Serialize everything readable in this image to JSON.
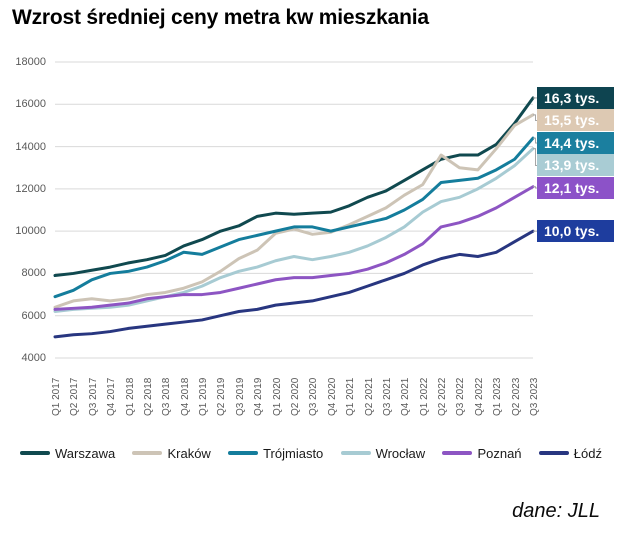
{
  "header": {
    "title": "Wzrost średniej ceny metra kw mieszkania"
  },
  "source": {
    "label": "dane: JLL"
  },
  "colors": {
    "background": "#ffffff",
    "gridline": "#d9d9d9",
    "axis_text": "#595959",
    "connector": "#a6a6a6",
    "title_text": "#000000"
  },
  "chart_data": {
    "type": "line",
    "title": "Wzrost średniej ceny metra kw mieszkania",
    "xlabel": "",
    "ylabel": "",
    "ylim": [
      4000,
      18000
    ],
    "y_ticks": [
      4000,
      6000,
      8000,
      10000,
      12000,
      14000,
      16000,
      18000
    ],
    "grid": true,
    "legend_position": "bottom",
    "source": "dane: JLL",
    "categories": [
      "Q1 2017",
      "Q2 2017",
      "Q3 2017",
      "Q4 2017",
      "Q1 2018",
      "Q2 2018",
      "Q3 2018",
      "Q4 2018",
      "Q1 2019",
      "Q2 2019",
      "Q3 2019",
      "Q4 2019",
      "Q1 2020",
      "Q2 2020",
      "Q3 2020",
      "Q4 2020",
      "Q1 2021",
      "Q2 2021",
      "Q3 2021",
      "Q4 2021",
      "Q1 2022",
      "Q2 2022",
      "Q3 2022",
      "Q4 2022",
      "Q1 2023",
      "Q2 2023",
      "Q3 2023"
    ],
    "series": [
      {
        "name": "Warszawa",
        "color": "#10494f",
        "box_color": "#0e4450",
        "end_label": "16,3 tys.",
        "values": [
          7900,
          8000,
          8150,
          8300,
          8500,
          8650,
          8850,
          9300,
          9600,
          10000,
          10250,
          10700,
          10850,
          10800,
          10850,
          10900,
          11200,
          11600,
          11900,
          12400,
          12900,
          13400,
          13600,
          13600,
          14100,
          15100,
          16300
        ]
      },
      {
        "name": "Kraków",
        "color": "#cdc4b6",
        "box_color": "#ddc9b3",
        "end_label": "15,5 tys.",
        "values": [
          6400,
          6700,
          6800,
          6700,
          6800,
          7000,
          7100,
          7300,
          7600,
          8100,
          8700,
          9100,
          9900,
          10100,
          9850,
          9950,
          10300,
          10700,
          11100,
          11700,
          12200,
          13600,
          13000,
          12900,
          13900,
          15000,
          15500
        ]
      },
      {
        "name": "Trójmiasto",
        "color": "#147d9c",
        "box_color": "#1b7f9f",
        "end_label": "14,4 tys.",
        "values": [
          6900,
          7200,
          7700,
          8000,
          8100,
          8300,
          8600,
          9000,
          8900,
          9250,
          9600,
          9800,
          10000,
          10200,
          10200,
          10000,
          10200,
          10400,
          10600,
          11000,
          11500,
          12300,
          12400,
          12500,
          12900,
          13400,
          14400
        ]
      },
      {
        "name": "Wrocław",
        "color": "#a7cbd3",
        "box_color": "#a9ccd4",
        "end_label": "13,9 tys.",
        "values": [
          6200,
          6300,
          6350,
          6400,
          6500,
          6700,
          6900,
          7100,
          7400,
          7800,
          8100,
          8300,
          8600,
          8800,
          8650,
          8800,
          9000,
          9300,
          9700,
          10200,
          10900,
          11400,
          11600,
          12000,
          12500,
          13100,
          13900
        ]
      },
      {
        "name": "Poznań",
        "color": "#8d55c3",
        "box_color": "#8c52c8",
        "end_label": "12,1 tys.",
        "values": [
          6300,
          6350,
          6400,
          6500,
          6600,
          6800,
          6900,
          7000,
          7000,
          7100,
          7300,
          7500,
          7700,
          7800,
          7800,
          7900,
          8000,
          8200,
          8500,
          8900,
          9400,
          10200,
          10400,
          10700,
          11100,
          11600,
          12100
        ]
      },
      {
        "name": "Łódź",
        "color": "#283680",
        "box_color": "#1e3d9e",
        "end_label": "10,0 tys.",
        "values": [
          5000,
          5100,
          5150,
          5250,
          5400,
          5500,
          5600,
          5700,
          5800,
          6000,
          6200,
          6300,
          6500,
          6600,
          6700,
          6900,
          7100,
          7400,
          7700,
          8000,
          8400,
          8700,
          8900,
          8800,
          9000,
          9500,
          10000
        ]
      }
    ]
  }
}
